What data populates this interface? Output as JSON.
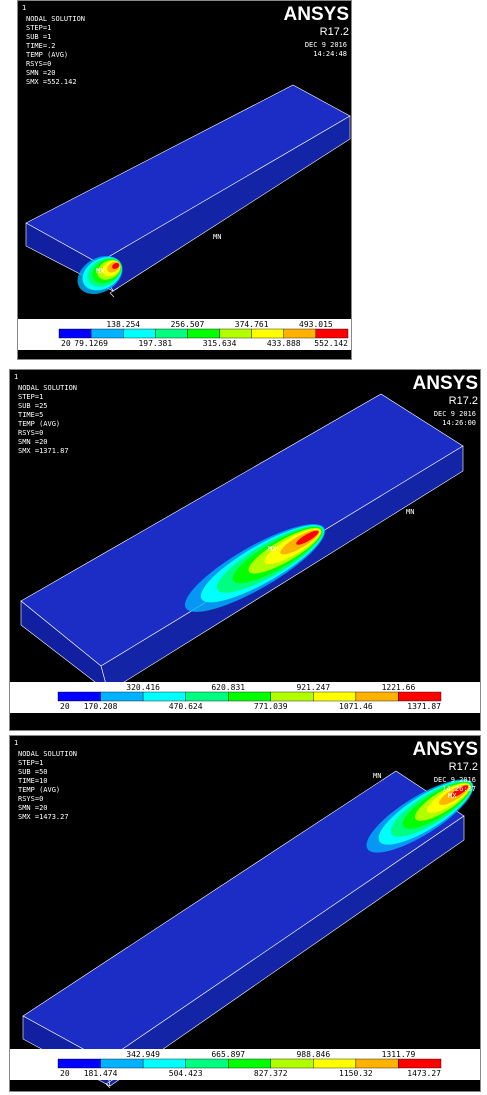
{
  "panels": [
    {
      "index": "1",
      "header": [
        "NODAL SOLUTION",
        "STEP=1",
        "SUB =1",
        "TIME=.2",
        "TEMP    (AVG)",
        "RSYS=0",
        "SMN =20",
        "SMX =552.142"
      ],
      "logo": "ANSYS",
      "version": "R17.2",
      "date": "DEC  9 2016",
      "time": "14:24:48",
      "mn": "MN",
      "mx": "MX",
      "legend": [
        "20",
        "79.1269",
        "138.254",
        "197.381",
        "256.507",
        "315.634",
        "374.761",
        "433.888",
        "493.015",
        "552.142"
      ]
    },
    {
      "index": "1",
      "header": [
        "NODAL SOLUTION",
        "STEP=1",
        "SUB =25",
        "TIME=5",
        "TEMP    (AVG)",
        "RSYS=0",
        "SMN =20",
        "SMX =1371.87"
      ],
      "logo": "ANSYS",
      "version": "R17.2",
      "date": "DEC  9 2016",
      "time": "14:26:00",
      "mn": "MN",
      "mx": "MX",
      "legend": [
        "20",
        "170.208",
        "320.416",
        "470.624",
        "620.831",
        "771.039",
        "921.247",
        "1071.46",
        "1221.66",
        "1371.87"
      ]
    },
    {
      "index": "1",
      "header": [
        "NODAL SOLUTION",
        "STEP=1",
        "SUB =50",
        "TIME=10",
        "TEMP    (AVG)",
        "RSYS=0",
        "SMN =20",
        "SMX =1473.27"
      ],
      "logo": "ANSYS",
      "version": "R17.2",
      "date": "DEC  9 2016",
      "time": "14:26:37",
      "mn": "MN",
      "mx": "MX",
      "legend": [
        "20",
        "181.474",
        "342.949",
        "504.423",
        "665.897",
        "827.372",
        "988.846",
        "1150.32",
        "1311.79",
        "1473.27"
      ]
    }
  ]
}
